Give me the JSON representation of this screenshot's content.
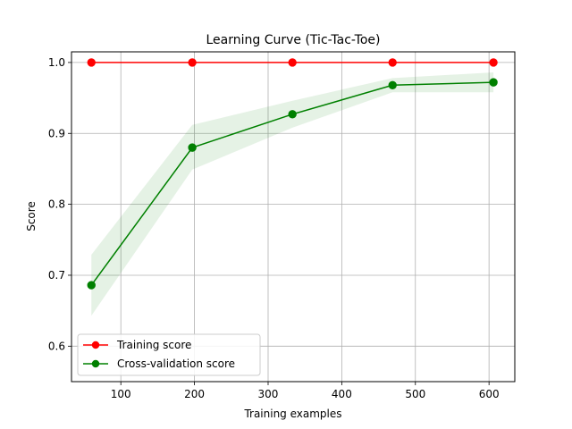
{
  "chart_data": {
    "type": "line",
    "title": "Learning Curve (Tic-Tac-Toe)",
    "xlabel": "Training examples",
    "ylabel": "Score",
    "xlim": [
      33,
      635
    ],
    "ylim": [
      0.55,
      1.015
    ],
    "xticks": [
      100,
      200,
      300,
      400,
      500,
      600
    ],
    "yticks": [
      0.6,
      0.7,
      0.8,
      0.9,
      1.0
    ],
    "xtick_labels": [
      "100",
      "200",
      "300",
      "400",
      "500",
      "600"
    ],
    "ytick_labels": [
      "0.6",
      "0.7",
      "0.8",
      "0.9",
      "1.0"
    ],
    "grid": true,
    "legend_position": "lower-left",
    "x": [
      60,
      197,
      333,
      469,
      606
    ],
    "series": [
      {
        "name": "Training score",
        "color": "#ff0000",
        "values": [
          1.0,
          1.0,
          1.0,
          1.0,
          1.0
        ],
        "band_low": [
          1.0,
          1.0,
          1.0,
          1.0,
          1.0
        ],
        "band_high": [
          1.0,
          1.0,
          1.0,
          1.0,
          1.0
        ]
      },
      {
        "name": "Cross-validation score",
        "color": "#008000",
        "values": [
          0.686,
          0.88,
          0.927,
          0.968,
          0.972
        ],
        "band_low": [
          0.643,
          0.849,
          0.908,
          0.958,
          0.958
        ],
        "band_high": [
          0.729,
          0.912,
          0.946,
          0.978,
          0.986
        ]
      }
    ]
  }
}
